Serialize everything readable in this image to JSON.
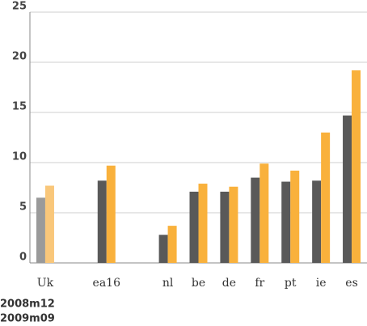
{
  "chart_data": {
    "type": "bar",
    "categories": [
      "Uk",
      null,
      "ea16",
      null,
      "nl",
      "be",
      "de",
      "fr",
      "pt",
      "ie",
      "es"
    ],
    "series": [
      {
        "name": "2008m12",
        "color": "#595959",
        "colors": [
          "#9a9a9a",
          "#595959",
          "#595959",
          "#595959",
          "#595959",
          "#595959",
          "#595959",
          "#595959",
          "#595959",
          "#595959",
          "#595959"
        ],
        "values": [
          6.5,
          null,
          8.2,
          null,
          2.8,
          7.1,
          7.1,
          8.5,
          8.1,
          8.2,
          14.7
        ]
      },
      {
        "name": "2009m09",
        "color": "#f9b13c",
        "colors": [
          "#f9c77a",
          "#f9b13c",
          "#f9b13c",
          "#f9b13c",
          "#f9b13c",
          "#f9b13c",
          "#f9b13c",
          "#f9b13c",
          "#f9b13c",
          "#f9b13c",
          "#f9b13c"
        ],
        "values": [
          7.7,
          null,
          9.7,
          null,
          3.7,
          7.9,
          7.6,
          9.9,
          9.2,
          13.0,
          19.2
        ]
      }
    ],
    "ylim": [
      0,
      25
    ],
    "yticks": [
      0,
      5,
      10,
      15,
      20,
      25
    ],
    "grid": true
  }
}
